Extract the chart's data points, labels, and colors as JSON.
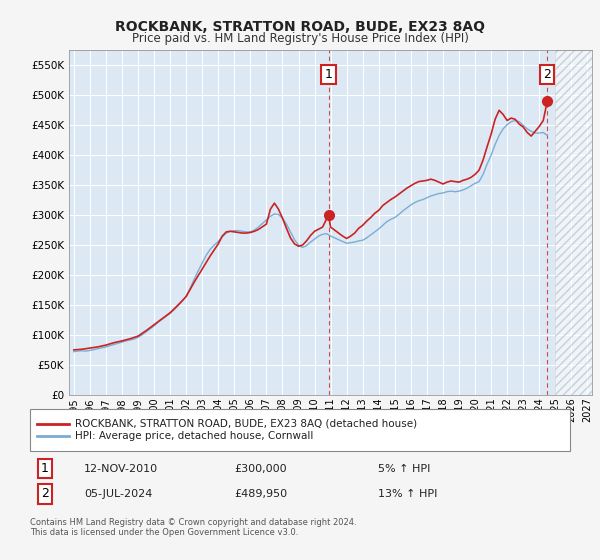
{
  "title": "ROCKBANK, STRATTON ROAD, BUDE, EX23 8AQ",
  "subtitle": "Price paid vs. HM Land Registry's House Price Index (HPI)",
  "fig_bg_color": "#f5f5f5",
  "plot_bg_color": "#dce9f5",
  "grid_color": "#ffffff",
  "ylim": [
    0,
    575000
  ],
  "yticks": [
    0,
    50000,
    100000,
    150000,
    200000,
    250000,
    300000,
    350000,
    400000,
    450000,
    500000,
    550000
  ],
  "ytick_labels": [
    "£0",
    "£50K",
    "£100K",
    "£150K",
    "£200K",
    "£250K",
    "£300K",
    "£350K",
    "£400K",
    "£450K",
    "£500K",
    "£550K"
  ],
  "xlim_start": 1994.7,
  "xlim_end": 2027.3,
  "xtick_years": [
    1995,
    1996,
    1997,
    1998,
    1999,
    2000,
    2001,
    2002,
    2003,
    2004,
    2005,
    2006,
    2007,
    2008,
    2009,
    2010,
    2011,
    2012,
    2013,
    2014,
    2015,
    2016,
    2017,
    2018,
    2019,
    2020,
    2021,
    2022,
    2023,
    2024,
    2025,
    2026,
    2027
  ],
  "hpi_line_color": "#7aadd4",
  "property_line_color": "#cc2222",
  "marker1_x": 2010.87,
  "marker1_y": 300000,
  "marker2_x": 2024.5,
  "marker2_y": 489950,
  "annotation1_date": "12-NOV-2010",
  "annotation1_price": "£300,000",
  "annotation1_hpi": "5% ↑ HPI",
  "annotation2_date": "05-JUL-2024",
  "annotation2_price": "£489,950",
  "annotation2_hpi": "13% ↑ HPI",
  "legend_line1": "ROCKBANK, STRATTON ROAD, BUDE, EX23 8AQ (detached house)",
  "legend_line2": "HPI: Average price, detached house, Cornwall",
  "copyright_text": "Contains HM Land Registry data © Crown copyright and database right 2024.\nThis data is licensed under the Open Government Licence v3.0.",
  "hpi_data": [
    [
      1995.0,
      72000
    ],
    [
      1995.25,
      73000
    ],
    [
      1995.5,
      73500
    ],
    [
      1995.75,
      73000
    ],
    [
      1996.0,
      74000
    ],
    [
      1996.25,
      75500
    ],
    [
      1996.5,
      77000
    ],
    [
      1996.75,
      78500
    ],
    [
      1997.0,
      80000
    ],
    [
      1997.25,
      82000
    ],
    [
      1997.5,
      84000
    ],
    [
      1997.75,
      86000
    ],
    [
      1998.0,
      88000
    ],
    [
      1998.25,
      90000
    ],
    [
      1998.5,
      91500
    ],
    [
      1998.75,
      93000
    ],
    [
      1999.0,
      96000
    ],
    [
      1999.25,
      100000
    ],
    [
      1999.5,
      105000
    ],
    [
      1999.75,
      110000
    ],
    [
      2000.0,
      115000
    ],
    [
      2000.25,
      121000
    ],
    [
      2000.5,
      126000
    ],
    [
      2000.75,
      131000
    ],
    [
      2001.0,
      136000
    ],
    [
      2001.25,
      142000
    ],
    [
      2001.5,
      149000
    ],
    [
      2001.75,
      156000
    ],
    [
      2002.0,
      165000
    ],
    [
      2002.25,
      178000
    ],
    [
      2002.5,
      193000
    ],
    [
      2002.75,
      207000
    ],
    [
      2003.0,
      220000
    ],
    [
      2003.25,
      233000
    ],
    [
      2003.5,
      243000
    ],
    [
      2003.75,
      250000
    ],
    [
      2004.0,
      256000
    ],
    [
      2004.25,
      264000
    ],
    [
      2004.5,
      270000
    ],
    [
      2004.75,
      273000
    ],
    [
      2005.0,
      274000
    ],
    [
      2005.25,
      274000
    ],
    [
      2005.5,
      273000
    ],
    [
      2005.75,
      272000
    ],
    [
      2006.0,
      272000
    ],
    [
      2006.25,
      275000
    ],
    [
      2006.5,
      280000
    ],
    [
      2006.75,
      286000
    ],
    [
      2007.0,
      292000
    ],
    [
      2007.25,
      298000
    ],
    [
      2007.5,
      302000
    ],
    [
      2007.75,
      301000
    ],
    [
      2008.0,
      295000
    ],
    [
      2008.25,
      285000
    ],
    [
      2008.5,
      272000
    ],
    [
      2008.75,
      259000
    ],
    [
      2009.0,
      250000
    ],
    [
      2009.25,
      246000
    ],
    [
      2009.5,
      249000
    ],
    [
      2009.75,
      255000
    ],
    [
      2010.0,
      260000
    ],
    [
      2010.25,
      265000
    ],
    [
      2010.5,
      268000
    ],
    [
      2010.75,
      269000
    ],
    [
      2011.0,
      265000
    ],
    [
      2011.25,
      262000
    ],
    [
      2011.5,
      259000
    ],
    [
      2011.75,
      256000
    ],
    [
      2012.0,
      253000
    ],
    [
      2012.25,
      254000
    ],
    [
      2012.5,
      255000
    ],
    [
      2012.75,
      257000
    ],
    [
      2013.0,
      258000
    ],
    [
      2013.25,
      262000
    ],
    [
      2013.5,
      267000
    ],
    [
      2013.75,
      272000
    ],
    [
      2014.0,
      277000
    ],
    [
      2014.25,
      283000
    ],
    [
      2014.5,
      289000
    ],
    [
      2014.75,
      293000
    ],
    [
      2015.0,
      296000
    ],
    [
      2015.25,
      301000
    ],
    [
      2015.5,
      307000
    ],
    [
      2015.75,
      312000
    ],
    [
      2016.0,
      317000
    ],
    [
      2016.25,
      321000
    ],
    [
      2016.5,
      324000
    ],
    [
      2016.75,
      326000
    ],
    [
      2017.0,
      329000
    ],
    [
      2017.25,
      332000
    ],
    [
      2017.5,
      334000
    ],
    [
      2017.75,
      336000
    ],
    [
      2018.0,
      337000
    ],
    [
      2018.25,
      339000
    ],
    [
      2018.5,
      340000
    ],
    [
      2018.75,
      339000
    ],
    [
      2019.0,
      340000
    ],
    [
      2019.25,
      342000
    ],
    [
      2019.5,
      345000
    ],
    [
      2019.75,
      349000
    ],
    [
      2020.0,
      353000
    ],
    [
      2020.25,
      356000
    ],
    [
      2020.5,
      368000
    ],
    [
      2020.75,
      385000
    ],
    [
      2021.0,
      400000
    ],
    [
      2021.25,
      418000
    ],
    [
      2021.5,
      433000
    ],
    [
      2021.75,
      444000
    ],
    [
      2022.0,
      451000
    ],
    [
      2022.25,
      456000
    ],
    [
      2022.5,
      458000
    ],
    [
      2022.75,
      456000
    ],
    [
      2023.0,
      450000
    ],
    [
      2023.25,
      444000
    ],
    [
      2023.5,
      440000
    ],
    [
      2023.75,
      437000
    ],
    [
      2024.0,
      437000
    ],
    [
      2024.25,
      438000
    ],
    [
      2024.5,
      433000
    ]
  ],
  "property_data": [
    [
      1995.0,
      75000
    ],
    [
      1995.5,
      76000
    ],
    [
      1996.0,
      78000
    ],
    [
      1996.5,
      80000
    ],
    [
      1997.0,
      83000
    ],
    [
      1997.5,
      87000
    ],
    [
      1998.0,
      90000
    ],
    [
      1998.5,
      93500
    ],
    [
      1999.0,
      98000
    ],
    [
      1999.5,
      107000
    ],
    [
      2000.0,
      117000
    ],
    [
      2000.5,
      127000
    ],
    [
      2001.0,
      137000
    ],
    [
      2001.5,
      150000
    ],
    [
      2002.0,
      164000
    ],
    [
      2002.5,
      188000
    ],
    [
      2003.0,
      210000
    ],
    [
      2003.5,
      232000
    ],
    [
      2004.0,
      252000
    ],
    [
      2004.25,
      265000
    ],
    [
      2004.5,
      272000
    ],
    [
      2004.75,
      273000
    ],
    [
      2005.0,
      272000
    ],
    [
      2005.25,
      271000
    ],
    [
      2005.5,
      270000
    ],
    [
      2005.75,
      270000
    ],
    [
      2006.0,
      271000
    ],
    [
      2006.25,
      273000
    ],
    [
      2006.5,
      276000
    ],
    [
      2007.0,
      285000
    ],
    [
      2007.25,
      310000
    ],
    [
      2007.5,
      320000
    ],
    [
      2007.75,
      310000
    ],
    [
      2008.0,
      295000
    ],
    [
      2008.25,
      278000
    ],
    [
      2008.5,
      262000
    ],
    [
      2008.75,
      252000
    ],
    [
      2009.0,
      248000
    ],
    [
      2009.25,
      250000
    ],
    [
      2009.5,
      257000
    ],
    [
      2009.75,
      266000
    ],
    [
      2010.0,
      273000
    ],
    [
      2010.5,
      280000
    ],
    [
      2010.87,
      300000
    ],
    [
      2011.0,
      280000
    ],
    [
      2011.25,
      275000
    ],
    [
      2011.5,
      270000
    ],
    [
      2011.75,
      265000
    ],
    [
      2012.0,
      261000
    ],
    [
      2012.25,
      265000
    ],
    [
      2012.5,
      270000
    ],
    [
      2012.75,
      278000
    ],
    [
      2013.0,
      283000
    ],
    [
      2013.25,
      290000
    ],
    [
      2013.5,
      296000
    ],
    [
      2013.75,
      303000
    ],
    [
      2014.0,
      308000
    ],
    [
      2014.25,
      316000
    ],
    [
      2014.5,
      321000
    ],
    [
      2014.75,
      326000
    ],
    [
      2015.0,
      330000
    ],
    [
      2015.25,
      335000
    ],
    [
      2015.5,
      340000
    ],
    [
      2015.75,
      345000
    ],
    [
      2016.0,
      349000
    ],
    [
      2016.25,
      353000
    ],
    [
      2016.5,
      356000
    ],
    [
      2016.75,
      357000
    ],
    [
      2017.0,
      358000
    ],
    [
      2017.25,
      360000
    ],
    [
      2017.5,
      358000
    ],
    [
      2017.75,
      355000
    ],
    [
      2018.0,
      352000
    ],
    [
      2018.25,
      355000
    ],
    [
      2018.5,
      357000
    ],
    [
      2018.75,
      356000
    ],
    [
      2019.0,
      355000
    ],
    [
      2019.25,
      358000
    ],
    [
      2019.5,
      360000
    ],
    [
      2019.75,
      363000
    ],
    [
      2020.0,
      368000
    ],
    [
      2020.25,
      375000
    ],
    [
      2020.5,
      392000
    ],
    [
      2020.75,
      414000
    ],
    [
      2021.0,
      435000
    ],
    [
      2021.25,
      460000
    ],
    [
      2021.5,
      475000
    ],
    [
      2021.75,
      468000
    ],
    [
      2022.0,
      458000
    ],
    [
      2022.25,
      462000
    ],
    [
      2022.5,
      460000
    ],
    [
      2022.75,
      452000
    ],
    [
      2023.0,
      447000
    ],
    [
      2023.25,
      438000
    ],
    [
      2023.5,
      432000
    ],
    [
      2023.75,
      440000
    ],
    [
      2024.0,
      448000
    ],
    [
      2024.25,
      458000
    ],
    [
      2024.5,
      489950
    ]
  ],
  "hatch_start_x": 2025.0
}
